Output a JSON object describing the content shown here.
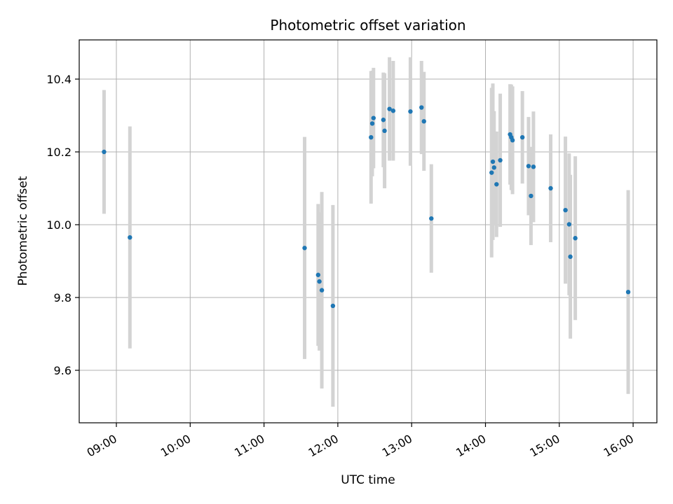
{
  "chart_data": {
    "type": "scatter",
    "title": "Photometric offset variation",
    "xlabel": "UTC time",
    "ylabel": "Photometric offset",
    "grid": true,
    "legend": "none",
    "x_tick_labels": [
      "09:00",
      "10:00",
      "11:00",
      "12:00",
      "13:00",
      "14:00",
      "15:00",
      "16:00"
    ],
    "x_tick_hours": [
      9,
      10,
      11,
      12,
      13,
      14,
      15,
      16
    ],
    "y_ticks": [
      9.6,
      9.8,
      10.0,
      10.2,
      10.4
    ],
    "y_tick_labels": [
      "9.6",
      "9.8",
      "10.0",
      "10.2",
      "10.4"
    ],
    "xlim_hours": [
      8.5,
      16.32
    ],
    "ylim": [
      9.45,
      10.51
    ],
    "point_color": "#1f77b4",
    "errorbar_color": "#d3d3d3",
    "points": [
      {
        "t": "08:50",
        "y": 10.2,
        "err": 0.17
      },
      {
        "t": "09:11",
        "y": 9.965,
        "err": 0.305
      },
      {
        "t": "11:33",
        "y": 9.936,
        "err": 0.305
      },
      {
        "t": "11:44",
        "y": 9.862,
        "err": 0.195
      },
      {
        "t": "11:45",
        "y": 9.844,
        "err": 0.19
      },
      {
        "t": "11:47",
        "y": 9.82,
        "err": 0.27
      },
      {
        "t": "11:56",
        "y": 9.777,
        "err": 0.277
      },
      {
        "t": "12:27",
        "y": 10.24,
        "err": 0.182
      },
      {
        "t": "12:28",
        "y": 10.278,
        "err": 0.145
      },
      {
        "t": "12:29",
        "y": 10.293,
        "err": 0.138
      },
      {
        "t": "12:37",
        "y": 10.288,
        "err": 0.13
      },
      {
        "t": "12:38",
        "y": 10.258,
        "err": 0.158
      },
      {
        "t": "12:42",
        "y": 10.318,
        "err": 0.142
      },
      {
        "t": "12:45",
        "y": 10.313,
        "err": 0.137
      },
      {
        "t": "12:59",
        "y": 10.311,
        "err": 0.149
      },
      {
        "t": "13:08",
        "y": 10.322,
        "err": 0.128
      },
      {
        "t": "13:10",
        "y": 10.284,
        "err": 0.136
      },
      {
        "t": "13:16",
        "y": 10.017,
        "err": 0.149
      },
      {
        "t": "14:05",
        "y": 10.143,
        "err": 0.233
      },
      {
        "t": "14:06",
        "y": 10.173,
        "err": 0.215
      },
      {
        "t": "14:07",
        "y": 10.157,
        "err": 0.155
      },
      {
        "t": "14:09",
        "y": 10.111,
        "err": 0.145
      },
      {
        "t": "14:12",
        "y": 10.177,
        "err": 0.183
      },
      {
        "t": "14:20",
        "y": 10.248,
        "err": 0.138
      },
      {
        "t": "14:21",
        "y": 10.24,
        "err": 0.145
      },
      {
        "t": "14:22",
        "y": 10.232,
        "err": 0.148
      },
      {
        "t": "14:30",
        "y": 10.24,
        "err": 0.127
      },
      {
        "t": "14:35",
        "y": 10.161,
        "err": 0.135
      },
      {
        "t": "14:37",
        "y": 10.079,
        "err": 0.135
      },
      {
        "t": "14:39",
        "y": 10.159,
        "err": 0.152
      },
      {
        "t": "14:53",
        "y": 10.1,
        "err": 0.148
      },
      {
        "t": "15:05",
        "y": 10.04,
        "err": 0.202
      },
      {
        "t": "15:08",
        "y": 10.001,
        "err": 0.195
      },
      {
        "t": "15:09",
        "y": 9.912,
        "err": 0.225
      },
      {
        "t": "15:13",
        "y": 9.963,
        "err": 0.225
      },
      {
        "t": "15:56",
        "y": 9.815,
        "err": 0.28
      }
    ]
  }
}
